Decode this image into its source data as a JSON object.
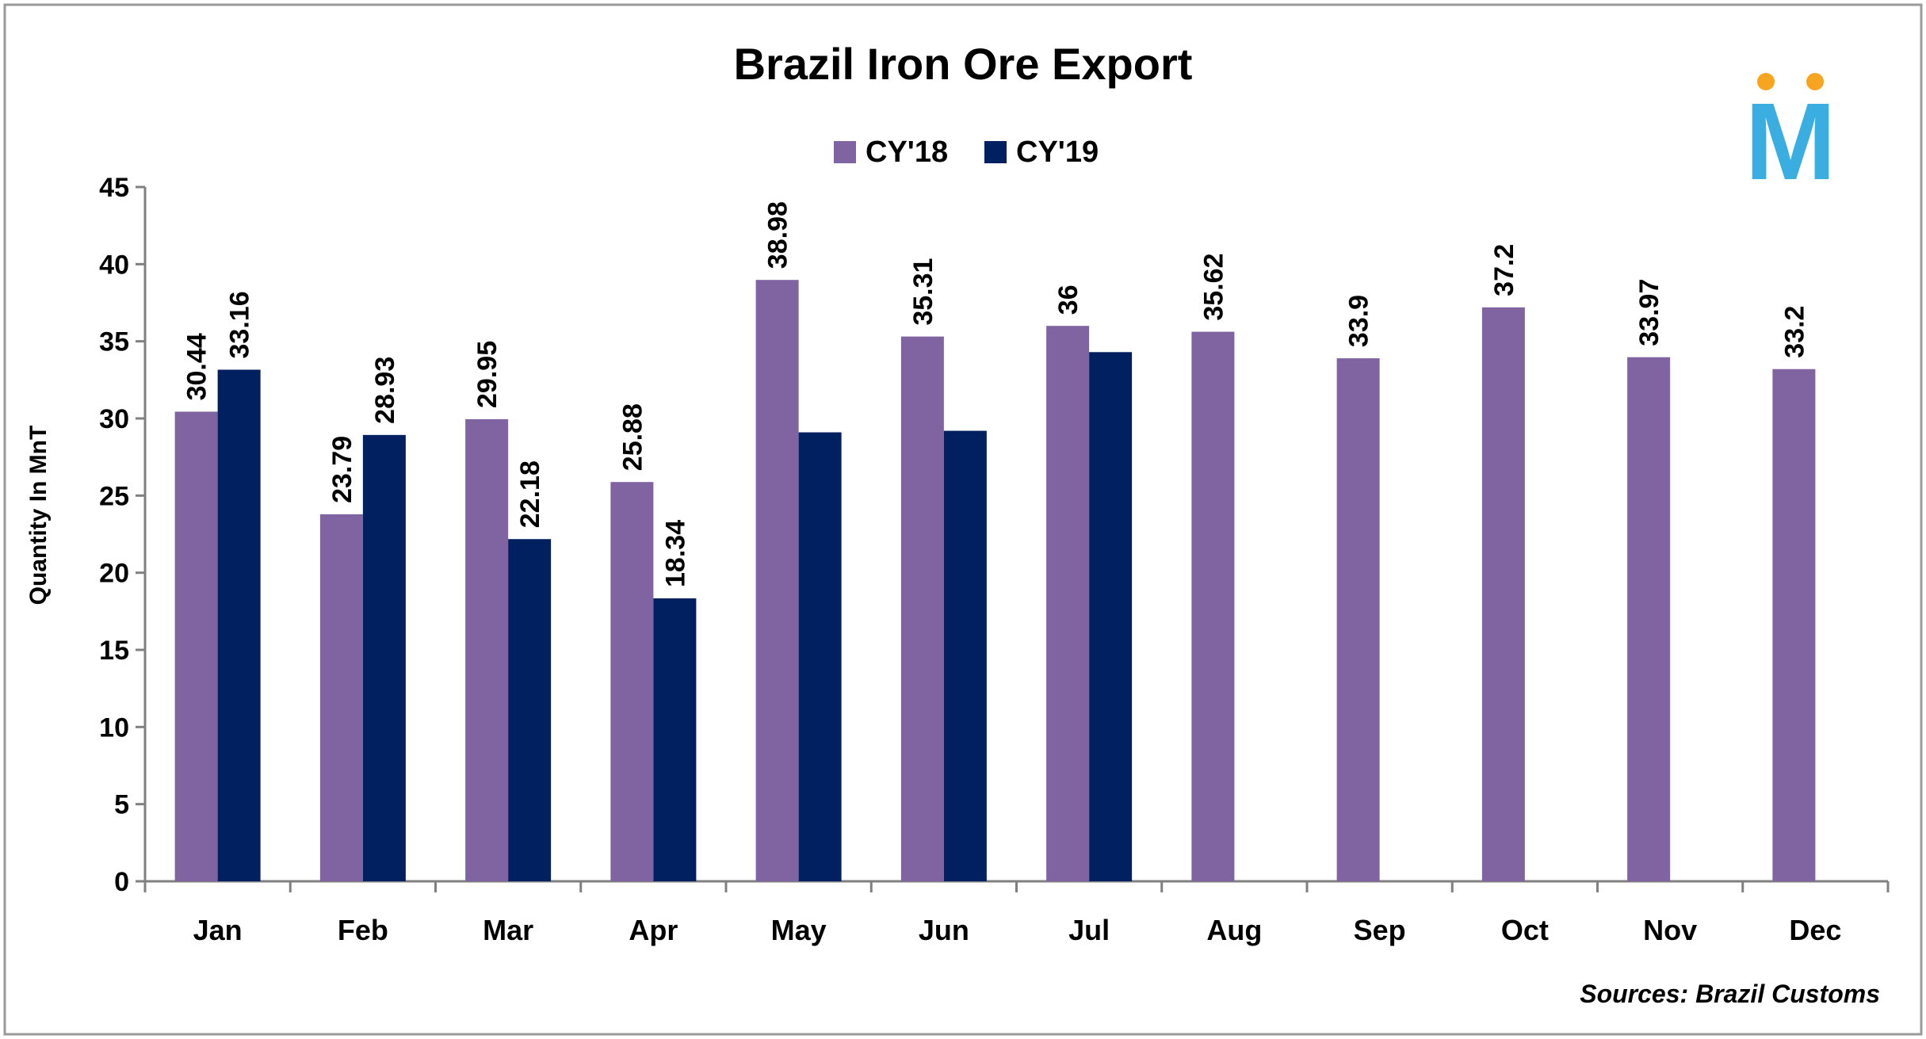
{
  "chart_data": {
    "type": "bar",
    "title": "Brazil Iron Ore Export",
    "ylabel": "Quantity In MnT",
    "xlabel": "",
    "ylim": [
      0,
      45
    ],
    "yticks": [
      0,
      5,
      10,
      15,
      20,
      25,
      30,
      35,
      40,
      45
    ],
    "categories": [
      "Jan",
      "Feb",
      "Mar",
      "Apr",
      "May",
      "Jun",
      "Jul",
      "Aug",
      "Sep",
      "Oct",
      "Nov",
      "Dec"
    ],
    "series": [
      {
        "name": "CY'18",
        "color": "#8064a2",
        "values": [
          30.44,
          23.79,
          29.95,
          25.88,
          38.98,
          35.31,
          36,
          35.62,
          33.9,
          37.2,
          33.97,
          33.2
        ],
        "labels": [
          "30.44",
          "23.79",
          "29.95",
          "25.88",
          "38.98",
          "35.31",
          "36",
          "35.62",
          "33.9",
          "37.2",
          "33.97",
          "33.2"
        ]
      },
      {
        "name": "CY'19",
        "color": "#002060",
        "values": [
          33.16,
          28.93,
          22.18,
          18.34,
          29.1,
          29.2,
          34.3,
          null,
          null,
          null,
          null,
          null
        ],
        "labels": [
          "33.16",
          "28.93",
          "22.18",
          "18.34",
          "",
          "",
          "",
          "",
          "",
          "",
          "",
          ""
        ]
      }
    ],
    "legend_position": "top",
    "grid": false,
    "source": "Sources: Brazil Customs",
    "logo_letter": "M"
  }
}
